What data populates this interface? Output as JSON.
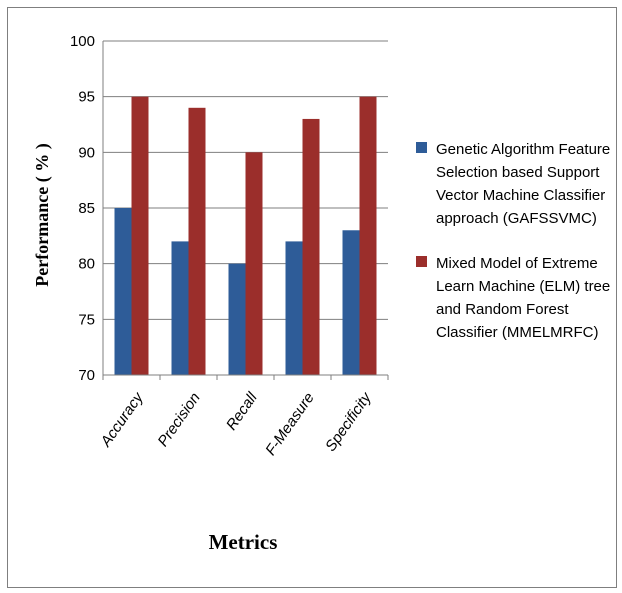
{
  "chart_data": {
    "type": "bar",
    "title": "",
    "xlabel": "Metrics",
    "ylabel": "Performance ( % )",
    "categories": [
      "Accuracy",
      "Precision",
      "Recall",
      "F-Measure",
      "Specificity"
    ],
    "ylim": [
      70,
      100
    ],
    "yticks": [
      70,
      75,
      80,
      85,
      90,
      95,
      100
    ],
    "grid": true,
    "legend_position": "right",
    "series": [
      {
        "name": "Genetic Algorithm Feature Selection based Support Vector Machine Classifier approach (GAFSSVMC)",
        "values": [
          85,
          82,
          80,
          82,
          83
        ],
        "color": "#2e5c98"
      },
      {
        "name": "Mixed Model of Extreme Learn Machine (ELM) tree and Random Forest Classifier (MMELMRFC)",
        "values": [
          95,
          94,
          90,
          93,
          95
        ],
        "color": "#9b2e2b"
      }
    ]
  }
}
